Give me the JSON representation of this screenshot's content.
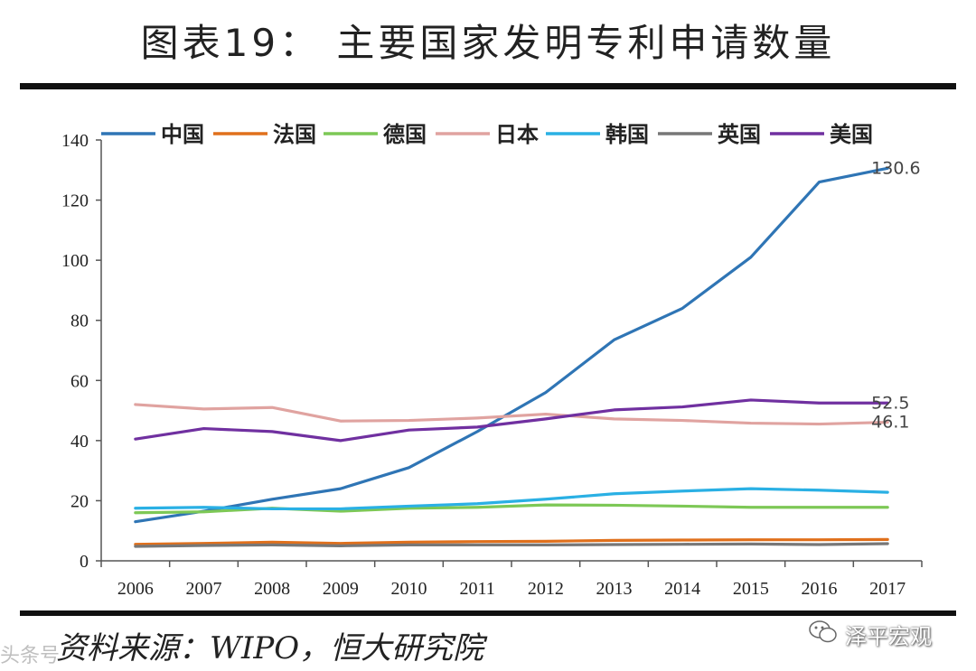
{
  "page": {
    "title": "图表19： 主要国家发明专利申请数量",
    "source": "资料来源：WIPO，恒大研究院",
    "watermark": "泽平宏观",
    "watermark_left": "头条号"
  },
  "chart_data": {
    "type": "line",
    "title": "图表19： 主要国家发明专利申请数量",
    "xlabel": "",
    "ylabel": "",
    "ylim": [
      0,
      140
    ],
    "yticks": [
      0,
      20,
      40,
      60,
      80,
      100,
      120,
      140
    ],
    "grid": false,
    "legend_position": "top",
    "categories": [
      "2006",
      "2007",
      "2008",
      "2009",
      "2010",
      "2011",
      "2012",
      "2013",
      "2014",
      "2015",
      "2016",
      "2017"
    ],
    "series": [
      {
        "name": "中国",
        "color": "#2f75b5",
        "values": [
          13,
          16.5,
          20.5,
          24,
          31,
          43,
          56,
          73.5,
          84,
          101,
          126,
          130.6
        ],
        "end_label": "130.6"
      },
      {
        "name": "法国",
        "color": "#e0701c",
        "values": [
          5.5,
          5.8,
          6.2,
          5.8,
          6.2,
          6.4,
          6.5,
          6.8,
          6.9,
          7.0,
          7.0,
          7.1
        ]
      },
      {
        "name": "德国",
        "color": "#7dc856",
        "values": [
          16,
          16.3,
          17.5,
          16.5,
          17.5,
          17.8,
          18.6,
          18.5,
          18.2,
          17.8,
          17.8,
          17.8
        ]
      },
      {
        "name": "日本",
        "color": "#e0a3a0",
        "values": [
          52,
          50.5,
          51,
          46.5,
          46.7,
          47.5,
          48.8,
          47.2,
          46.7,
          45.8,
          45.5,
          46.1
        ],
        "end_label": "46.1"
      },
      {
        "name": "韩国",
        "color": "#2ab0e4",
        "values": [
          17.5,
          17.8,
          17.3,
          17.3,
          18.2,
          19.0,
          20.5,
          22.3,
          23.2,
          24,
          23.5,
          22.8
        ]
      },
      {
        "name": "英国",
        "color": "#777777",
        "values": [
          4.8,
          5.1,
          5.3,
          5.0,
          5.3,
          5.3,
          5.3,
          5.4,
          5.5,
          5.6,
          5.4,
          5.7
        ]
      },
      {
        "name": "美国",
        "color": "#7030a0",
        "values": [
          40.5,
          44,
          43,
          40,
          43.5,
          44.5,
          47.2,
          50.2,
          51.2,
          53.5,
          52.5,
          52.5
        ],
        "end_label": "52.5"
      }
    ]
  }
}
